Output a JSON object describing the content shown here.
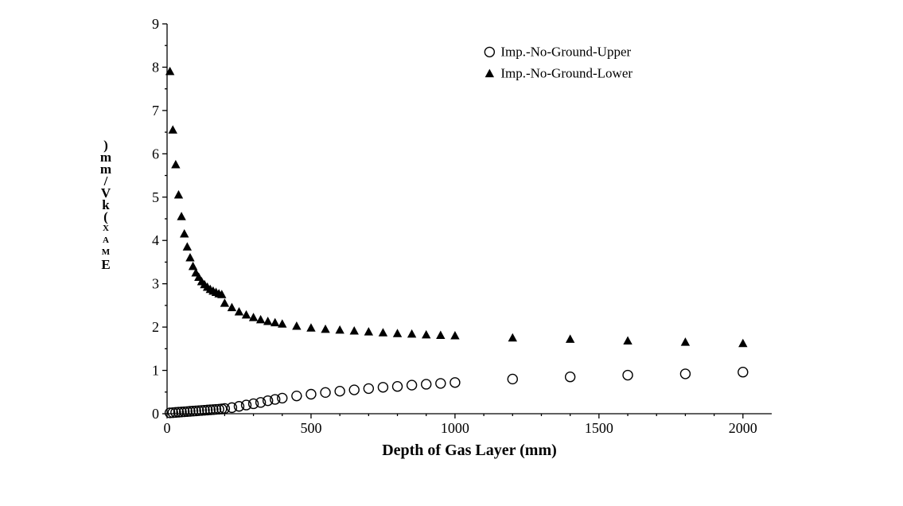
{
  "chart": {
    "type": "scatter",
    "background_color": "#ffffff",
    "axis_color": "#000000",
    "axis_linewidth": 1.3,
    "xlabel": "Depth of Gas Layer (mm)",
    "ylabel": "EMAX (kV/mm)",
    "label_fontsize": 20,
    "label_fontweight": "bold",
    "tick_fontsize": 18,
    "xlim": [
      0,
      2100
    ],
    "ylim": [
      0,
      9
    ],
    "xtick_step": 500,
    "ytick_step": 1,
    "xticks": [
      0,
      500,
      1000,
      1500,
      2000
    ],
    "yticks": [
      0,
      1,
      2,
      3,
      4,
      5,
      6,
      7,
      8,
      9
    ],
    "tick_length_major": 6,
    "tick_length_minor": 3,
    "x_inner_tick_count": 4,
    "y_inner_tick_count": 1,
    "grid": false,
    "legend": {
      "position": "top-right",
      "items": [
        {
          "label": "Imp.-No-Ground-Upper",
          "marker": "open-circle"
        },
        {
          "label": "Imp.-No-Ground-Lower",
          "marker": "filled-triangle"
        }
      ],
      "fontsize": 17
    },
    "series": [
      {
        "name": "Imp.-No-Ground-Upper",
        "marker": "open-circle",
        "marker_size": 6.0,
        "marker_stroke": "#000000",
        "marker_fill": "none",
        "marker_stroke_width": 1.4,
        "x": [
          10,
          20,
          30,
          40,
          50,
          60,
          70,
          80,
          90,
          100,
          110,
          120,
          130,
          140,
          150,
          160,
          170,
          180,
          190,
          200,
          225,
          250,
          275,
          300,
          325,
          350,
          375,
          400,
          450,
          500,
          550,
          600,
          650,
          700,
          750,
          800,
          850,
          900,
          950,
          1000,
          1200,
          1400,
          1600,
          1800,
          2000
        ],
        "y": [
          0.02,
          0.025,
          0.03,
          0.035,
          0.04,
          0.045,
          0.05,
          0.055,
          0.06,
          0.065,
          0.07,
          0.075,
          0.08,
          0.085,
          0.09,
          0.095,
          0.1,
          0.105,
          0.11,
          0.12,
          0.14,
          0.17,
          0.2,
          0.23,
          0.26,
          0.3,
          0.33,
          0.36,
          0.41,
          0.45,
          0.49,
          0.52,
          0.55,
          0.58,
          0.61,
          0.63,
          0.66,
          0.68,
          0.7,
          0.72,
          0.8,
          0.85,
          0.89,
          0.92,
          0.96
        ]
      },
      {
        "name": "Imp.-No-Ground-Lower",
        "marker": "filled-triangle",
        "marker_size": 6.0,
        "marker_stroke": "#000000",
        "marker_fill": "#000000",
        "marker_stroke_width": 0,
        "x": [
          10,
          20,
          30,
          40,
          50,
          60,
          70,
          80,
          90,
          100,
          110,
          120,
          130,
          140,
          150,
          160,
          170,
          180,
          190,
          200,
          225,
          250,
          275,
          300,
          325,
          350,
          375,
          400,
          450,
          500,
          550,
          600,
          650,
          700,
          750,
          800,
          850,
          900,
          950,
          1000,
          1200,
          1400,
          1600,
          1800,
          2000
        ],
        "y": [
          7.9,
          6.55,
          5.75,
          5.05,
          4.55,
          4.15,
          3.85,
          3.6,
          3.4,
          3.25,
          3.15,
          3.05,
          2.98,
          2.92,
          2.87,
          2.83,
          2.8,
          2.77,
          2.75,
          2.55,
          2.45,
          2.35,
          2.28,
          2.22,
          2.17,
          2.13,
          2.1,
          2.07,
          2.02,
          1.98,
          1.95,
          1.93,
          1.91,
          1.89,
          1.87,
          1.85,
          1.84,
          1.82,
          1.81,
          1.8,
          1.75,
          1.72,
          1.68,
          1.65,
          1.62
        ]
      }
    ]
  }
}
